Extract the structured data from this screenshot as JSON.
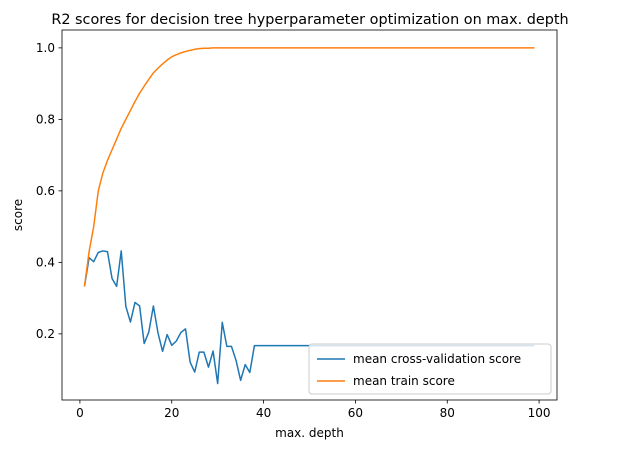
{
  "chart_data": {
    "type": "line",
    "title": "R2 scores for decision tree hyperparameter optimization on max. depth",
    "xlabel": "max. depth",
    "ylabel": "score",
    "xlim": [
      -3.9,
      103.9
    ],
    "ylim": [
      0.015,
      1.05
    ],
    "xticks": [
      0,
      20,
      40,
      60,
      80,
      100
    ],
    "yticks": [
      0.2,
      0.4,
      0.6,
      0.8,
      1.0
    ],
    "xtick_labels": [
      "0",
      "20",
      "40",
      "60",
      "80",
      "100"
    ],
    "ytick_labels": [
      "0.2",
      "0.4",
      "0.6",
      "0.8",
      "1.0"
    ],
    "grid": false,
    "legend_position": "lower-right",
    "series": [
      {
        "name": "mean cross-validation score",
        "color": "#1f77b4",
        "x": [
          1,
          2,
          3,
          4,
          5,
          6,
          7,
          8,
          9,
          10,
          11,
          12,
          13,
          14,
          15,
          16,
          17,
          18,
          19,
          20,
          21,
          22,
          23,
          24,
          25,
          26,
          27,
          28,
          29,
          30,
          31,
          32,
          33,
          34,
          35,
          36,
          37,
          38,
          39,
          40,
          45,
          50,
          55,
          60,
          65,
          70,
          75,
          80,
          85,
          90,
          95,
          99
        ],
        "y": [
          0.333,
          0.413,
          0.402,
          0.428,
          0.432,
          0.43,
          0.355,
          0.333,
          0.432,
          0.277,
          0.233,
          0.288,
          0.278,
          0.173,
          0.205,
          0.278,
          0.203,
          0.151,
          0.198,
          0.168,
          0.18,
          0.204,
          0.214,
          0.121,
          0.093,
          0.149,
          0.149,
          0.107,
          0.152,
          0.061,
          0.232,
          0.165,
          0.165,
          0.126,
          0.07,
          0.114,
          0.092,
          0.167,
          0.167,
          0.167,
          0.167,
          0.167,
          0.167,
          0.167,
          0.167,
          0.167,
          0.167,
          0.167,
          0.167,
          0.167,
          0.167,
          0.167
        ]
      },
      {
        "name": "mean train score",
        "color": "#ff7f0e",
        "x": [
          1,
          2,
          3,
          4,
          5,
          6,
          7,
          8,
          9,
          10,
          11,
          12,
          13,
          14,
          15,
          16,
          17,
          18,
          19,
          20,
          21,
          22,
          23,
          24,
          25,
          26,
          27,
          28,
          29,
          30,
          35,
          40,
          50,
          60,
          70,
          80,
          90,
          99
        ],
        "y": [
          0.333,
          0.43,
          0.5,
          0.6,
          0.65,
          0.685,
          0.715,
          0.745,
          0.775,
          0.8,
          0.825,
          0.85,
          0.873,
          0.893,
          0.912,
          0.93,
          0.943,
          0.955,
          0.966,
          0.975,
          0.981,
          0.986,
          0.99,
          0.993,
          0.996,
          0.998,
          0.999,
          0.999,
          1.0,
          1.0,
          1.0,
          1.0,
          1.0,
          1.0,
          1.0,
          1.0,
          1.0,
          1.0
        ]
      }
    ]
  }
}
